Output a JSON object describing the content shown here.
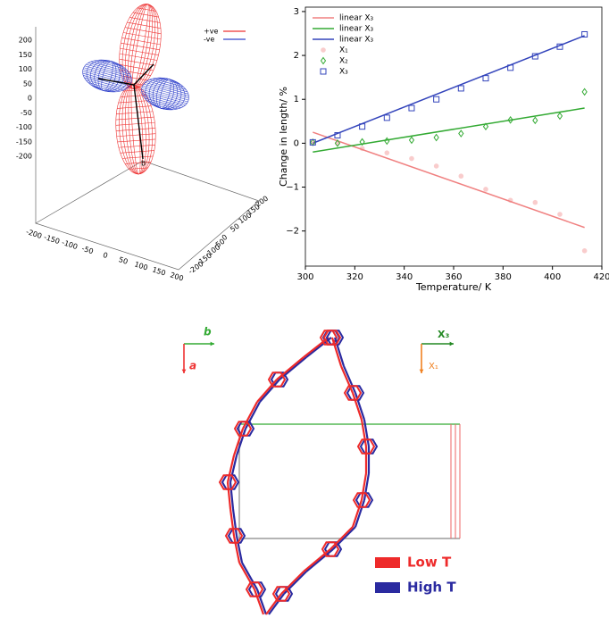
{
  "chart_data": [
    {
      "type": "surface3d",
      "series": [
        {
          "name": "+ve",
          "color": "#ee3333"
        },
        {
          "name": "-ve",
          "color": "#3344cc"
        }
      ],
      "zlim": [
        -200,
        200
      ],
      "zticks": [
        200,
        150,
        100,
        50,
        0,
        -50,
        -100,
        -150,
        -200
      ],
      "xlim": [
        -200,
        200
      ],
      "xticks": [
        -200,
        -150,
        -100,
        -50,
        0,
        50,
        100,
        150,
        200
      ],
      "ylim": [
        -200,
        200
      ],
      "yticks": [
        -200,
        -150,
        -100,
        -50,
        0,
        50,
        100,
        150,
        200
      ],
      "annotation": "b",
      "legend": "upper right"
    },
    {
      "type": "line_scatter",
      "xlabel": "Temperature/ K",
      "ylabel": "Change in length/ %",
      "xlim": [
        300,
        420
      ],
      "xticks": [
        300,
        320,
        340,
        360,
        380,
        400,
        420
      ],
      "ylim": [
        -2.8,
        3.1
      ],
      "yticks": [
        {
          "value": -2,
          "label": "−2"
        },
        {
          "value": -1,
          "label": "−1"
        },
        0,
        1,
        2,
        3
      ],
      "legend": "upper left",
      "series": [
        {
          "name": "linear X₃",
          "color": "#f08080",
          "kind": "line",
          "x": [
            303,
            413
          ],
          "values": [
            0.25,
            -1.92
          ]
        },
        {
          "name": "linear X₃",
          "color": "#33aa33",
          "kind": "line",
          "x": [
            303,
            413
          ],
          "values": [
            -0.2,
            0.8
          ]
        },
        {
          "name": "linear X₃",
          "color": "#3344bb",
          "kind": "line",
          "x": [
            303,
            413
          ],
          "values": [
            0.0,
            2.45
          ]
        },
        {
          "name": "X₁",
          "color": "#f08080",
          "kind": "circle",
          "x": [
            303,
            313,
            323,
            333,
            343,
            353,
            363,
            373,
            383,
            393,
            403,
            413
          ],
          "values": [
            0.02,
            0.0,
            -0.12,
            -0.22,
            -0.35,
            -0.52,
            -0.75,
            -1.05,
            -1.3,
            -1.35,
            -1.62,
            -2.45
          ]
        },
        {
          "name": "X₂",
          "color": "#33aa33",
          "kind": "diamond",
          "x": [
            303,
            313,
            323,
            333,
            343,
            353,
            363,
            373,
            383,
            393,
            403,
            413
          ],
          "values": [
            0.02,
            0.0,
            0.03,
            0.05,
            0.07,
            0.13,
            0.22,
            0.38,
            0.53,
            0.52,
            0.62,
            1.17
          ]
        },
        {
          "name": "X₃",
          "color": "#3344bb",
          "kind": "square",
          "x": [
            303,
            313,
            323,
            333,
            343,
            353,
            363,
            373,
            383,
            393,
            403,
            413
          ],
          "values": [
            0.02,
            0.18,
            0.38,
            0.58,
            0.8,
            1.0,
            1.25,
            1.48,
            1.72,
            1.98,
            2.2,
            2.48
          ]
        }
      ]
    }
  ],
  "structure": {
    "axes_left": {
      "horizontal": "b",
      "vertical": "a"
    },
    "axes_right": {
      "horizontal": "X₃",
      "vertical": "X₁"
    },
    "legend": [
      {
        "label": "Low T",
        "color": "#ee2a2a"
      },
      {
        "label": "High T",
        "color": "#2a2aa0"
      }
    ]
  }
}
